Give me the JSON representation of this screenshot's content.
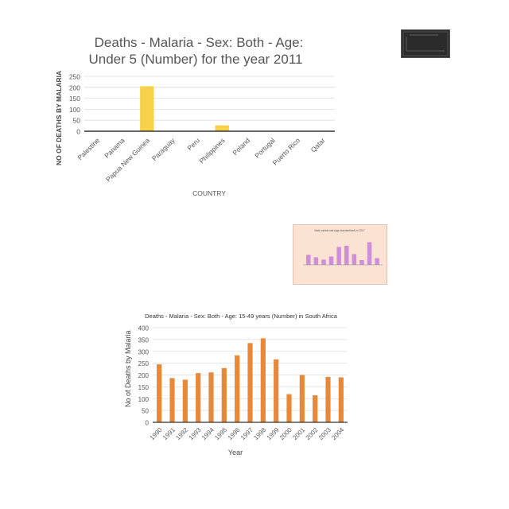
{
  "chart_data": [
    {
      "type": "bar",
      "title_lines": [
        "Deaths - Malaria - Sex: Both - Age:",
        "Under 5 (Number) for the year 2011"
      ],
      "xlabel": "COUNTRY",
      "ylabel": "NO OF DEATHS BY MALARIA",
      "categories": [
        "Palestine",
        "Panama",
        "Papua New Guinea",
        "Paraguay",
        "Peru",
        "Philippines",
        "Poland",
        "Portugal",
        "Puerto Rico",
        "Qatar"
      ],
      "values": [
        0,
        0,
        205,
        0,
        0,
        27,
        0,
        0,
        0,
        0
      ],
      "ylim": [
        0,
        250
      ],
      "yticks": [
        0,
        50,
        100,
        150,
        200,
        250
      ],
      "color": "#f7d14a",
      "grid": true
    },
    {
      "type": "bar",
      "title": "Deaths - Malaria - Sex: Both - Age: 15-49 years (Number) in South Africa",
      "xlabel": "Year",
      "ylabel": "No of Deaths by Malaria",
      "categories": [
        "1990",
        "1991",
        "1992",
        "1993",
        "1994",
        "1995",
        "1996",
        "1997",
        "1998",
        "1999",
        "2000",
        "2001",
        "2002",
        "2003",
        "2004"
      ],
      "values": [
        245,
        187,
        180,
        208,
        211,
        229,
        283,
        335,
        355,
        266,
        119,
        200,
        114,
        192,
        190
      ],
      "ylim": [
        0,
        400
      ],
      "yticks": [
        0,
        50,
        100,
        150,
        200,
        250,
        300,
        350,
        400
      ],
      "color": "#e8893a",
      "grid": true
    }
  ],
  "thumbnails": {
    "dark": {
      "colors": [
        "#2b2b2b",
        "#5a5a5a"
      ]
    },
    "pink": {
      "title": "Male suicide rate (age-standardized) in 2017",
      "bar_fractions": [
        0.42,
        0.32,
        0.22,
        0.35,
        0.75,
        0.8,
        0.45,
        0.2,
        0.95,
        0.28
      ],
      "bar_color": "#cf8fd8",
      "background": "#fbe3d4"
    }
  }
}
